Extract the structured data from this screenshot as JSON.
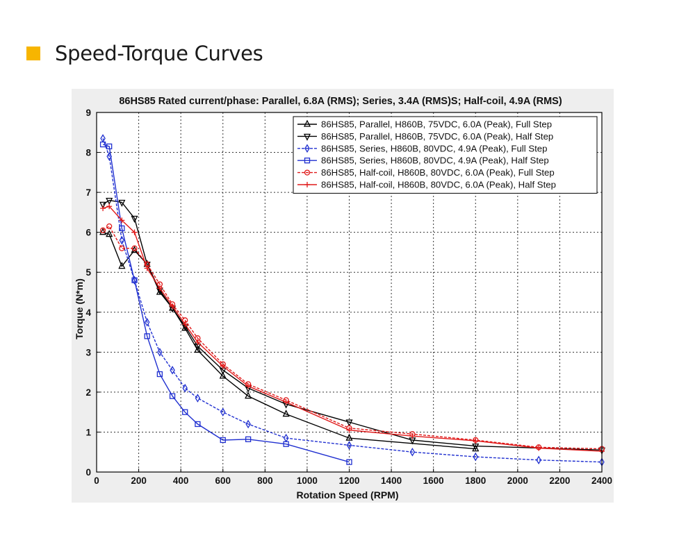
{
  "heading": {
    "text": "Speed-Torque Curves",
    "marker_color": "#F7B500"
  },
  "chart_data": {
    "type": "line",
    "title": "86HS85 Rated current/phase: Parallel, 6.8A (RMS); Series, 3.4A (RMS)S; Half-coil, 4.9A (RMS)",
    "xlabel": "Rotation Speed (RPM)",
    "ylabel": "Torque (N*m)",
    "xlim": [
      0,
      2400
    ],
    "ylim": [
      0,
      9
    ],
    "xticks": [
      "0",
      "200",
      "400",
      "600",
      "800",
      "1000",
      "1200",
      "1400",
      "1600",
      "1800",
      "2000",
      "2200",
      "2400"
    ],
    "yticks": [
      "0",
      "1",
      "2",
      "3",
      "4",
      "5",
      "6",
      "7",
      "8",
      "9"
    ],
    "grid": true,
    "legend_position": "top-right",
    "series": [
      {
        "name": "86HS85, Parallel, H860B, 75VDC, 6.0A (Peak), Full Step",
        "color": "#000000",
        "marker": "triangle-up",
        "dashed": false,
        "x": [
          30,
          60,
          120,
          180,
          240,
          300,
          360,
          420,
          480,
          600,
          720,
          900,
          1200,
          1800
        ],
        "y": [
          6.0,
          5.95,
          5.15,
          5.55,
          5.2,
          4.5,
          4.1,
          3.6,
          3.05,
          2.4,
          1.9,
          1.45,
          0.85,
          0.58
        ]
      },
      {
        "name": "86HS85, Parallel, H860B, 75VDC, 6.0A (Peak), Half Step",
        "color": "#000000",
        "marker": "triangle-down",
        "dashed": false,
        "x": [
          30,
          60,
          120,
          180,
          240,
          300,
          360,
          420,
          480,
          600,
          720,
          900,
          1200,
          1500,
          1800,
          2400
        ],
        "y": [
          6.7,
          6.8,
          6.75,
          6.35,
          5.2,
          4.55,
          4.1,
          3.65,
          3.15,
          2.55,
          2.1,
          1.7,
          1.25,
          0.8,
          0.65,
          0.55
        ]
      },
      {
        "name": "86HS85, Series, H860B, 80VDC, 4.9A (Peak), Full Step",
        "color": "#1f2fd0",
        "marker": "diamond",
        "dashed": true,
        "x": [
          30,
          60,
          120,
          180,
          240,
          300,
          360,
          420,
          480,
          600,
          720,
          900,
          1200,
          1500,
          1800,
          2100,
          2400
        ],
        "y": [
          8.35,
          7.9,
          5.8,
          4.8,
          3.75,
          3.0,
          2.55,
          2.1,
          1.85,
          1.5,
          1.2,
          0.85,
          0.67,
          0.5,
          0.38,
          0.3,
          0.25
        ]
      },
      {
        "name": "86HS85, Series, H860B, 80VDC, 4.9A (Peak), Half Step",
        "color": "#1f2fd0",
        "marker": "square",
        "dashed": false,
        "x": [
          30,
          60,
          120,
          180,
          240,
          300,
          360,
          420,
          480,
          600,
          720,
          900,
          1200
        ],
        "y": [
          8.2,
          8.15,
          6.1,
          4.8,
          3.4,
          2.45,
          1.9,
          1.5,
          1.2,
          0.8,
          0.82,
          0.7,
          0.25
        ]
      },
      {
        "name": "86HS85, Half-coil, H860B, 80VDC, 6.0A (Peak), Full Step",
        "color": "#e01818",
        "marker": "circle",
        "dashed": true,
        "x": [
          30,
          60,
          120,
          180,
          240,
          300,
          360,
          420,
          480,
          600,
          720,
          900,
          1200,
          1500,
          1800,
          2100,
          2400
        ],
        "y": [
          6.05,
          6.15,
          5.6,
          5.6,
          5.2,
          4.7,
          4.2,
          3.8,
          3.35,
          2.7,
          2.2,
          1.8,
          1.1,
          0.95,
          0.8,
          0.62,
          0.58
        ]
      },
      {
        "name": "86HS85, Half-coil, H860B, 80VDC, 6.0A (Peak), Half Step",
        "color": "#e01818",
        "marker": "plus",
        "dashed": false,
        "x": [
          30,
          60,
          120,
          180,
          240,
          300,
          360,
          420,
          480,
          600,
          720,
          900,
          1200,
          1500,
          1800,
          2100,
          2400
        ],
        "y": [
          6.6,
          6.65,
          6.3,
          6.0,
          5.1,
          4.6,
          4.15,
          3.7,
          3.25,
          2.65,
          2.15,
          1.75,
          1.05,
          0.9,
          0.78,
          0.6,
          0.52
        ]
      }
    ]
  }
}
